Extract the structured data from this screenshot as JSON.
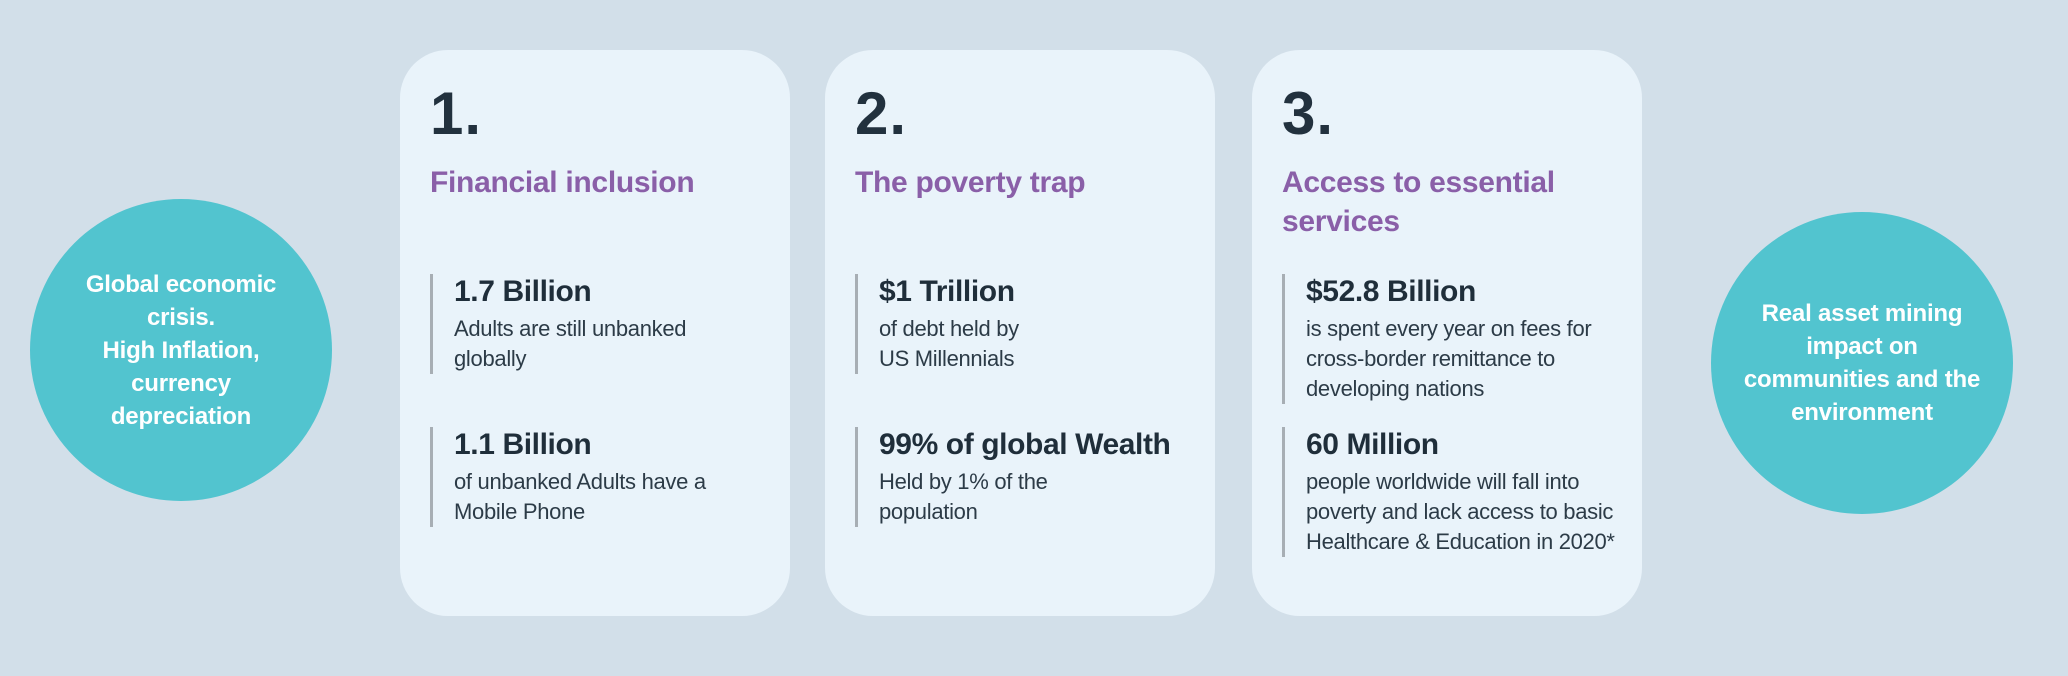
{
  "colors": {
    "page_background": "#d2dfe9",
    "card_background": "#e9f3fa",
    "circle_teal": "#52c4cf",
    "heading_purple": "#8a5fa8",
    "text_dark_navy": "#22313e",
    "stat_bar_gray": "#a7aeb4",
    "circle_text_white": "#ffffff"
  },
  "left_circle": {
    "text": "Global economic\ncrisis.\nHigh Inflation,\ncurrency\ndepreciation"
  },
  "right_circle": {
    "text": "Real asset  mining\nimpact on\ncommunities and the\nenvironment"
  },
  "cards": [
    {
      "number": "1.",
      "title": "Financial inclusion",
      "stats": [
        {
          "value": "1.7 Billion",
          "description": "Adults are still unbanked\nglobally"
        },
        {
          "value": "1.1 Billion",
          "description": "of unbanked Adults have a\nMobile Phone"
        }
      ]
    },
    {
      "number": "2.",
      "title": "The poverty trap",
      "stats": [
        {
          "value": "$1 Trillion",
          "description": "of debt held by\nUS Millennials"
        },
        {
          "value": "99% of global Wealth",
          "description": "Held by 1% of the\npopulation"
        }
      ]
    },
    {
      "number": "3.",
      "title": "Access to essential\nservices",
      "stats": [
        {
          "value": "$52.8 Billion",
          "description": "is spent every year on fees for\ncross-border remittance to\ndeveloping nations"
        },
        {
          "value": "60 Million",
          "description": "people worldwide will fall into\npoverty and lack access to basic\nHealthcare & Education in 2020*"
        }
      ]
    }
  ]
}
